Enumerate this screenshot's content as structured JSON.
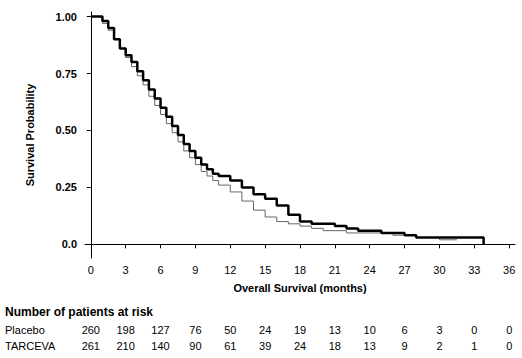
{
  "chart_data": {
    "type": "line",
    "x_label": "Overall Survival (months)",
    "y_label": "Survival Probability",
    "xlim": [
      -0.5,
      36.5
    ],
    "xticks": [
      0,
      3,
      6,
      9,
      12,
      15,
      18,
      21,
      24,
      27,
      30,
      33,
      36
    ],
    "ylim": [
      -0.06,
      1.02
    ],
    "yticks": [
      {
        "value": 0,
        "label": "0.0"
      },
      0.25,
      {
        "value": 0.5,
        "label": "0.50"
      },
      0.75,
      {
        "value": 1,
        "label": "1.00"
      }
    ],
    "grid": false,
    "series": [
      {
        "name": "TARCEVA",
        "color": "#000000",
        "line_style": "solid",
        "x": [
          0,
          0.5,
          1,
          1.5,
          2,
          2.5,
          3,
          3.5,
          4,
          4.5,
          5,
          5.5,
          6,
          6.5,
          7,
          7.5,
          8,
          8.5,
          9,
          9.5,
          10,
          10.5,
          11,
          12,
          13,
          14,
          15,
          16,
          17,
          18,
          19,
          20,
          21,
          22,
          23,
          24,
          25,
          26,
          27,
          28,
          30,
          33,
          33.8,
          33.8
        ],
        "values": [
          1,
          1,
          0.98,
          0.95,
          0.9,
          0.86,
          0.83,
          0.8,
          0.76,
          0.72,
          0.68,
          0.64,
          0.6,
          0.56,
          0.52,
          0.48,
          0.44,
          0.41,
          0.38,
          0.35,
          0.33,
          0.31,
          0.3,
          0.28,
          0.25,
          0.22,
          0.2,
          0.17,
          0.13,
          0.1,
          0.09,
          0.09,
          0.08,
          0.07,
          0.06,
          0.06,
          0.05,
          0.05,
          0.04,
          0.03,
          0.03,
          0.03,
          0.03,
          0
        ]
      },
      {
        "name": "Placebo",
        "color": "#666666",
        "line_style": "solid",
        "x": [
          0,
          0.5,
          1,
          1.5,
          2,
          2.5,
          3,
          3.5,
          4,
          4.5,
          5,
          5.5,
          6,
          6.5,
          7,
          7.5,
          8,
          8.5,
          9,
          9.5,
          10,
          10.5,
          11,
          12,
          13,
          14,
          15,
          16,
          17,
          18,
          19,
          20,
          22,
          24,
          26,
          28,
          30,
          31.5
        ],
        "values": [
          1,
          1,
          0.97,
          0.94,
          0.9,
          0.86,
          0.82,
          0.78,
          0.74,
          0.7,
          0.65,
          0.61,
          0.57,
          0.53,
          0.49,
          0.45,
          0.41,
          0.38,
          0.35,
          0.32,
          0.3,
          0.28,
          0.26,
          0.23,
          0.19,
          0.15,
          0.12,
          0.1,
          0.09,
          0.08,
          0.07,
          0.06,
          0.05,
          0.05,
          0.04,
          0.03,
          0.02,
          0.02
        ]
      }
    ],
    "at_risk": {
      "title": "Number of patients at risk",
      "x": [
        0,
        3,
        6,
        9,
        12,
        15,
        18,
        21,
        24,
        27,
        30,
        33,
        36
      ],
      "rows": [
        {
          "name": "Placebo",
          "values": [
            260,
            198,
            127,
            76,
            50,
            24,
            19,
            13,
            10,
            6,
            3,
            0,
            0
          ]
        },
        {
          "name": "TARCEVA",
          "values": [
            261,
            210,
            140,
            90,
            61,
            39,
            24,
            18,
            13,
            9,
            2,
            1,
            0
          ]
        }
      ]
    }
  }
}
